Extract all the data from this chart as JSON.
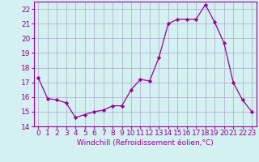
{
  "x": [
    0,
    1,
    2,
    3,
    4,
    5,
    6,
    7,
    8,
    9,
    10,
    11,
    12,
    13,
    14,
    15,
    16,
    17,
    18,
    19,
    20,
    21,
    22,
    23
  ],
  "y": [
    17.3,
    15.9,
    15.8,
    15.6,
    14.6,
    14.8,
    15.0,
    15.1,
    15.4,
    15.4,
    16.5,
    17.2,
    17.1,
    18.7,
    21.0,
    21.3,
    21.3,
    21.3,
    22.3,
    21.1,
    19.7,
    17.0,
    15.8,
    15.0
  ],
  "ylim": [
    14,
    22.5
  ],
  "xlim": [
    -0.5,
    23.5
  ],
  "yticks": [
    14,
    15,
    16,
    17,
    18,
    19,
    20,
    21,
    22
  ],
  "xticks": [
    0,
    1,
    2,
    3,
    4,
    5,
    6,
    7,
    8,
    9,
    10,
    11,
    12,
    13,
    14,
    15,
    16,
    17,
    18,
    19,
    20,
    21,
    22,
    23
  ],
  "xlabel": "Windchill (Refroidissement éolien,°C)",
  "line_color": "#990099",
  "marker": "D",
  "marker_size": 2.2,
  "bg_color": "#d4f0f0",
  "grid_color": "#aaaacc",
  "axis_color": "#990099",
  "tick_color": "#990099",
  "xlabel_fontsize": 6.5,
  "tick_fontsize": 6.5
}
